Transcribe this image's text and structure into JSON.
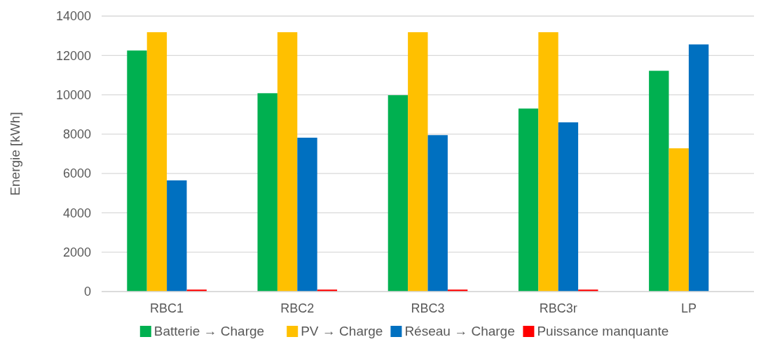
{
  "chart_data": {
    "type": "bar",
    "ylabel": "Energie [kWh]",
    "categories": [
      "RBC1",
      "RBC2",
      "RBC3",
      "RBC3r",
      "LP"
    ],
    "series": [
      {
        "name": "Batterie → Charge",
        "color": "#00b050",
        "values": [
          12250,
          10080,
          9980,
          9300,
          11220
        ]
      },
      {
        "name": "PV → Charge",
        "color": "#ffc000",
        "values": [
          13180,
          13180,
          13180,
          13180,
          7280
        ]
      },
      {
        "name": "Réseau → Charge",
        "color": "#0070c0",
        "values": [
          5650,
          7820,
          7950,
          8600,
          12560
        ]
      },
      {
        "name": "Puissance manquante",
        "color": "#ff0000",
        "values": [
          100,
          100,
          100,
          100,
          0
        ]
      }
    ],
    "ylim": [
      0,
      14000
    ],
    "yticks": [
      0,
      2000,
      4000,
      6000,
      8000,
      10000,
      12000,
      14000
    ],
    "grid": "y",
    "legend": "bottom"
  }
}
